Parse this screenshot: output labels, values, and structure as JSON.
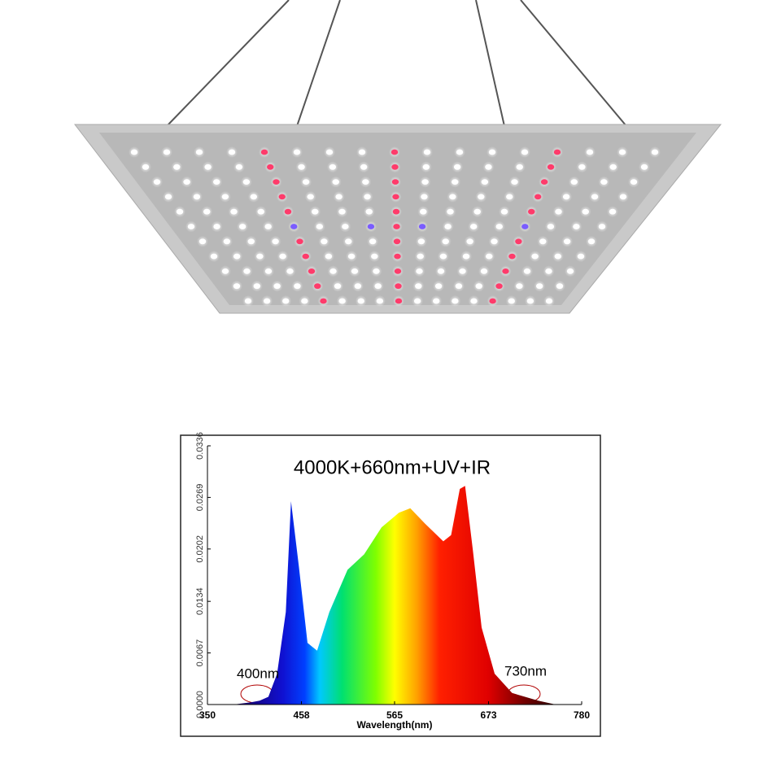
{
  "chart_data": {
    "type": "area",
    "title": "4000K+660nm+UV+IR",
    "x_label": "Wavelength(nm)",
    "x": [
      380,
      400,
      410,
      420,
      430,
      440,
      446,
      455,
      465,
      476,
      490,
      511,
      530,
      550,
      570,
      583,
      600,
      621,
      630,
      640,
      646,
      655,
      665,
      680,
      700,
      730,
      750
    ],
    "values": [
      0,
      0.0003,
      0.0005,
      0.001,
      0.004,
      0.012,
      0.0264,
      0.018,
      0.008,
      0.007,
      0.012,
      0.0175,
      0.0195,
      0.023,
      0.0249,
      0.0255,
      0.0235,
      0.0212,
      0.022,
      0.028,
      0.0284,
      0.02,
      0.01,
      0.004,
      0.0015,
      0.0005,
      0
    ],
    "xlim": [
      350,
      780
    ],
    "xticks": [
      350,
      458,
      565,
      673,
      780
    ],
    "ylim": [
      0,
      0.0336
    ],
    "yticks": [
      {
        "value": 0,
        "label": "0.0000"
      },
      0.0067,
      0.0134,
      0.0202,
      0.0269,
      0.0336
    ],
    "annotations": [
      "400nm",
      "730nm"
    ]
  }
}
